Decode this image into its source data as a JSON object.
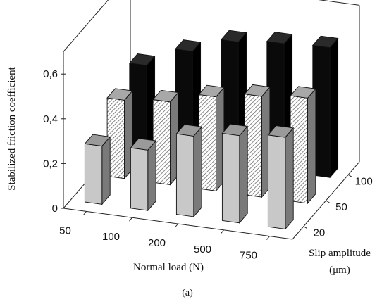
{
  "caption": "(a)",
  "chart_data": {
    "type": "bar3d",
    "ylabel": "Stabilized friction coefficient",
    "xlabel": "Normal load (N)",
    "zlabel_line1": "Slip amplitude",
    "zlabel_line2": "(μm)",
    "y_ticks": [
      "0",
      "0,2",
      "0,4",
      "0,6"
    ],
    "y_tick_values": [
      0,
      0.2,
      0.4,
      0.6
    ],
    "ylim": [
      0,
      0.7
    ],
    "x_categories": [
      "50",
      "100",
      "200",
      "500",
      "750"
    ],
    "depth_categories": [
      "20",
      "50",
      "100"
    ],
    "series": [
      {
        "name": "20",
        "values": [
          0.26,
          0.27,
          0.36,
          0.39,
          0.41
        ],
        "color": "#c8c8c8",
        "pattern": "solid"
      },
      {
        "name": "50",
        "values": [
          0.35,
          0.37,
          0.42,
          0.45,
          0.47
        ],
        "color": "#ffffff",
        "pattern": "hatched"
      },
      {
        "name": "100",
        "values": [
          0.39,
          0.48,
          0.55,
          0.57,
          0.58
        ],
        "color": "#0a0a0a",
        "pattern": "solid"
      }
    ],
    "grid": false
  }
}
